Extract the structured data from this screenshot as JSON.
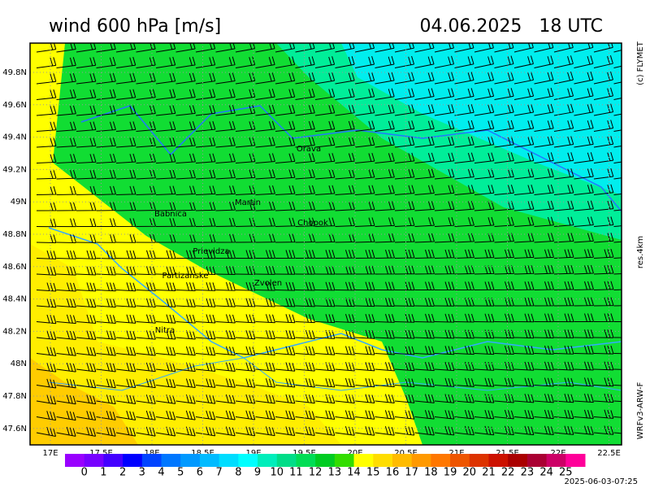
{
  "header": {
    "title": "wind 600 hPa [m/s]",
    "datetime": "04.06.2025   18 UTC"
  },
  "side": {
    "copyright": "(c) FLYMET",
    "resolution": "res.4km",
    "model": "WRFv3-ARW-F"
  },
  "footer": {
    "timestamp": "2025-06-03-07:25"
  },
  "axes": {
    "lat_labels": [
      "49.8N",
      "49.6N",
      "49.4N",
      "49.2N",
      "49N",
      "48.8N",
      "48.6N",
      "48.4N",
      "48.2N",
      "48N",
      "47.8N",
      "47.6N"
    ],
    "lon_labels": [
      "17E",
      "17.5E",
      "18E",
      "18.5E",
      "19E",
      "19.5E",
      "20E",
      "20.5E",
      "21E",
      "21.5E",
      "22E",
      "22.5E"
    ]
  },
  "places": [
    {
      "name": "Orava"
    },
    {
      "name": "Martin"
    },
    {
      "name": "Babnica"
    },
    {
      "name": "Chopok"
    },
    {
      "name": "Prievidza"
    },
    {
      "name": "Partizanske"
    },
    {
      "name": "Zvolen"
    },
    {
      "name": "Nitra"
    }
  ],
  "colorbar": {
    "ticks": [
      0,
      1,
      2,
      3,
      4,
      5,
      6,
      7,
      8,
      9,
      10,
      11,
      12,
      13,
      14,
      15,
      16,
      17,
      18,
      19,
      20,
      21,
      22,
      23,
      24,
      25
    ],
    "colors": [
      "#9900ff",
      "#7700ff",
      "#4400ff",
      "#0000ff",
      "#0044ff",
      "#0077ff",
      "#0099ff",
      "#00bbff",
      "#00ddff",
      "#00ffff",
      "#00eebb",
      "#00dd88",
      "#00dd55",
      "#00cc22",
      "#33dd00",
      "#ffff00",
      "#ffdd00",
      "#ffbb00",
      "#ff9900",
      "#ff7700",
      "#ee5500",
      "#dd3300",
      "#cc1100",
      "#aa0000",
      "#aa0033",
      "#cc0066",
      "#ff0099"
    ]
  }
}
